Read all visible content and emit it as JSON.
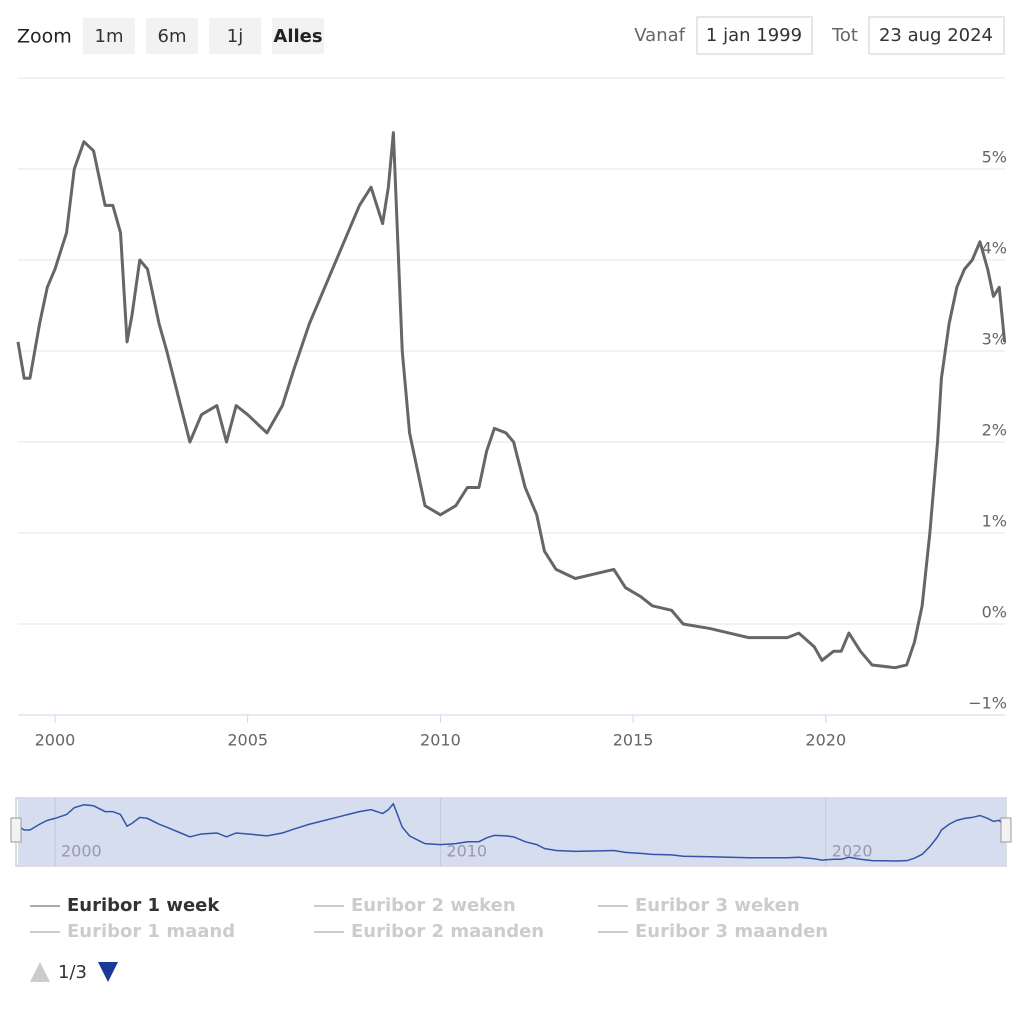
{
  "chart_data": {
    "type": "line",
    "range_selector": {
      "label": "Zoom",
      "buttons": [
        "1m",
        "6m",
        "1j",
        "Alles"
      ],
      "from_label": "Vanaf",
      "from": "1 jan 1999",
      "to_label": "Tot",
      "to": "23 aug 2024"
    },
    "x": [
      1999.04,
      1999.2,
      1999.35,
      1999.6,
      1999.8,
      2000.0,
      2000.3,
      2000.5,
      2000.75,
      2001.0,
      2001.3,
      2001.5,
      2001.7,
      2001.87,
      2002.0,
      2002.2,
      2002.4,
      2002.7,
      2002.9,
      2003.2,
      2003.5,
      2003.8,
      2004.2,
      2004.45,
      2004.7,
      2005.0,
      2005.5,
      2005.9,
      2006.2,
      2006.6,
      2007.0,
      2007.3,
      2007.6,
      2007.9,
      2008.2,
      2008.5,
      2008.65,
      2008.78,
      2009.01,
      2009.2,
      2009.4,
      2009.6,
      2010.0,
      2010.4,
      2010.7,
      2011.0,
      2011.2,
      2011.4,
      2011.7,
      2011.9,
      2012.2,
      2012.5,
      2012.7,
      2013.0,
      2013.5,
      2014.0,
      2014.5,
      2014.8,
      2015.2,
      2015.5,
      2016.0,
      2016.3,
      2017.0,
      2018.0,
      2019.0,
      2019.3,
      2019.7,
      2019.9,
      2020.2,
      2020.4,
      2020.6,
      2020.9,
      2021.2,
      2021.8,
      2022.1,
      2022.3,
      2022.5,
      2022.7,
      2022.9,
      2023.0,
      2023.2,
      2023.4,
      2023.6,
      2023.8,
      2024.0,
      2024.2,
      2024.35,
      2024.5,
      2024.64
    ],
    "series": [
      {
        "name": "Euribor 1 week",
        "color": "#666666",
        "values": [
          3.1,
          2.7,
          2.7,
          3.3,
          3.7,
          3.9,
          4.3,
          5.0,
          5.3,
          5.2,
          4.6,
          4.6,
          4.3,
          3.1,
          3.4,
          4.0,
          3.9,
          3.3,
          3.0,
          2.5,
          2.0,
          2.3,
          2.4,
          2.0,
          2.4,
          2.3,
          2.1,
          2.4,
          2.8,
          3.3,
          3.7,
          4.0,
          4.3,
          4.6,
          4.8,
          4.4,
          4.8,
          5.4,
          3.0,
          2.1,
          1.7,
          1.3,
          1.2,
          1.3,
          1.5,
          1.5,
          1.9,
          2.15,
          2.1,
          2.0,
          1.5,
          1.2,
          0.8,
          0.6,
          0.5,
          0.55,
          0.6,
          0.4,
          0.3,
          0.2,
          0.15,
          0.0,
          -0.05,
          -0.15,
          -0.15,
          -0.1,
          -0.25,
          -0.4,
          -0.3,
          -0.3,
          -0.1,
          -0.3,
          -0.45,
          -0.48,
          -0.45,
          -0.2,
          0.2,
          1.0,
          2.0,
          2.7,
          3.3,
          3.7,
          3.9,
          4.0,
          4.2,
          3.9,
          3.6,
          3.7,
          3.1
        ]
      }
    ],
    "xlim": [
      1999.04,
      2024.65
    ],
    "xticks": [
      2000,
      2005,
      2010,
      2015,
      2020
    ],
    "ylim": [
      -1,
      6
    ],
    "yticks": [
      {
        "value": -1,
        "label": "−1%"
      },
      {
        "value": 0,
        "label": "0%"
      },
      {
        "value": 1,
        "label": "1%"
      },
      {
        "value": 2,
        "label": "2%"
      },
      {
        "value": 3,
        "label": "3%"
      },
      {
        "value": 4,
        "label": "4%"
      },
      {
        "value": 5,
        "label": "5%"
      }
    ],
    "grid": true,
    "navigator": {
      "color": "#3355aa",
      "fill": "#d6ddef",
      "xticks": [
        2000,
        2010,
        2020
      ]
    },
    "legend": {
      "hidden_items": [
        "Euribor 2 weken",
        "Euribor 3 weken",
        "Euribor 1 maand",
        "Euribor 2 maanden",
        "Euribor 3 maanden"
      ],
      "page": "1/3"
    }
  }
}
